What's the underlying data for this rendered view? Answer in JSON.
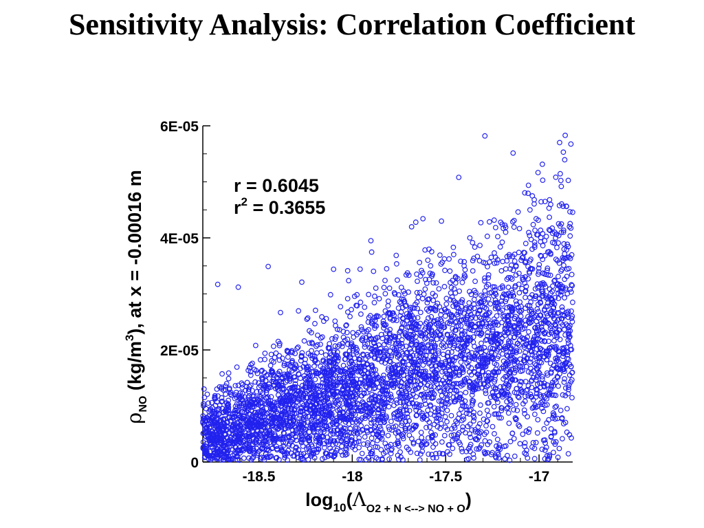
{
  "chart_data": {
    "type": "scatter",
    "title": "Sensitivity Analysis: Correlation Coefficient",
    "xlabel": {
      "prefix": "log",
      "sub": "10",
      "open": "(",
      "symbol": "Λ",
      "symbol_sub": "O2 + N <--> NO + O",
      "close": ")"
    },
    "ylabel": {
      "symbol": "ρ",
      "symbol_sub": "NO",
      "unit_pre": " (kg/m",
      "unit_sup": "3",
      "unit_post": "), at x = -0.00016 m"
    },
    "xlim": [
      -18.8,
      -16.82
    ],
    "ylim": [
      0,
      6e-05
    ],
    "xticks": [
      {
        "value": -18.5,
        "label": "-18.5"
      },
      {
        "value": -18,
        "label": "-18"
      },
      {
        "value": -17.5,
        "label": "-17.5"
      },
      {
        "value": -17,
        "label": "-17"
      }
    ],
    "yticks": [
      {
        "value": 0,
        "label": "0"
      },
      {
        "value": 2e-05,
        "label": "2E-05"
      },
      {
        "value": 4e-05,
        "label": "4E-05"
      },
      {
        "value": 6e-05,
        "label": "6E-05"
      }
    ],
    "annotations": {
      "r_label": "r",
      "r_value": " = 0.6045",
      "r2_label": "r",
      "r2_sup": "2",
      "r2_value": " = 0.3655"
    },
    "series": [
      {
        "marker": "open-circle",
        "color": "#2222ee",
        "generated": {
          "count": 4500,
          "x_range": [
            -18.8,
            -16.82
          ],
          "correlation": 0.6045
        },
        "notable_points": [
          [
            -17.29,
            5.82e-05
          ],
          [
            -16.86,
            5.83e-05
          ],
          [
            -16.89,
            5.7e-05
          ],
          [
            -16.87,
            5.53e-05
          ],
          [
            -17.43,
            5.08e-05
          ],
          [
            -18.1,
            3.44e-05
          ],
          [
            -18.45,
            3.49e-05
          ],
          [
            -18.72,
            3.17e-05
          ],
          [
            -18.61,
            3.12e-05
          ],
          [
            -17.9,
            3.95e-05
          ],
          [
            -17.66,
            4.28e-05
          ],
          [
            -18.27,
            3.21e-05
          ]
        ]
      }
    ]
  }
}
